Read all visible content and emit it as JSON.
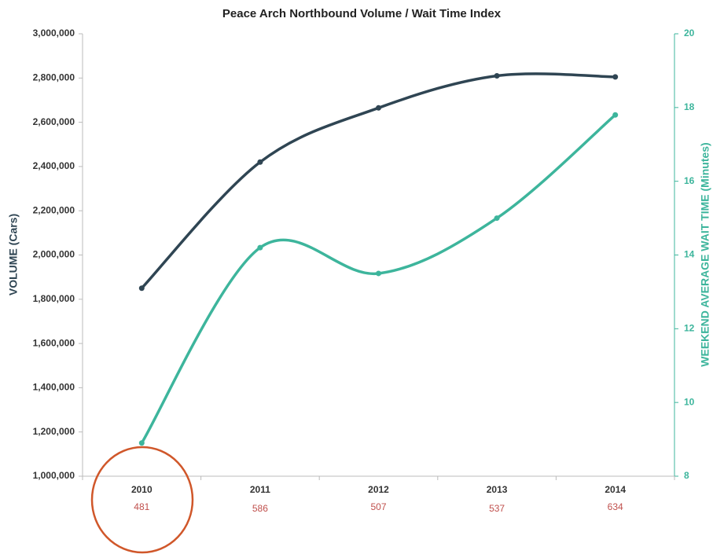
{
  "chart_data": {
    "type": "line",
    "title": "Peace Arch Northbound Volume / Wait Time Index",
    "categories": [
      "2010",
      "2011",
      "2012",
      "2013",
      "2014"
    ],
    "category_counts": [
      481,
      586,
      507,
      537,
      634
    ],
    "ylabel": "VOLUME (Cars)",
    "y2label": "WEEKEND AVERAGE WAIT TIME (Minutes)",
    "ylim": [
      1000000,
      3000000
    ],
    "yticks": [
      {
        "value": 1000000,
        "label": "1,000,000"
      },
      {
        "value": 1200000,
        "label": "1,200,000"
      },
      {
        "value": 1400000,
        "label": "1,400,000"
      },
      {
        "value": 1600000,
        "label": "1,600,000"
      },
      {
        "value": 1800000,
        "label": "1,800,000"
      },
      {
        "value": 2000000,
        "label": "2,000,000"
      },
      {
        "value": 2200000,
        "label": "2,200,000"
      },
      {
        "value": 2400000,
        "label": "2,400,000"
      },
      {
        "value": 2600000,
        "label": "2,600,000"
      },
      {
        "value": 2800000,
        "label": "2,800,000"
      },
      {
        "value": 3000000,
        "label": "3,000,000"
      }
    ],
    "y2lim": [
      8,
      20
    ],
    "y2ticks": [
      8,
      10,
      12,
      14,
      16,
      18,
      20
    ],
    "series": [
      {
        "name": "Volume",
        "color": "#2f4553",
        "values": [
          1850000,
          2420000,
          2665000,
          2810000,
          2805000
        ]
      },
      {
        "name": "Wait Time",
        "color": "#3db59c",
        "axis": "y2",
        "values": [
          8.9,
          14.2,
          13.5,
          15.0,
          17.8
        ]
      }
    ]
  }
}
